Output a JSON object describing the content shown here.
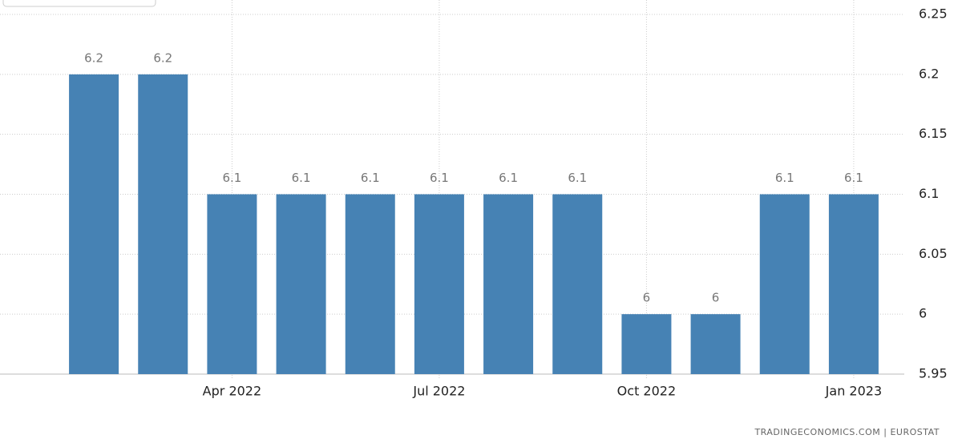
{
  "chart_data": {
    "type": "bar",
    "categories": [
      null,
      null,
      "Apr 2022",
      null,
      null,
      "Jul 2022",
      null,
      null,
      "Oct 2022",
      null,
      null,
      "Jan 2023"
    ],
    "values": [
      6.2,
      6.2,
      6.1,
      6.1,
      6.1,
      6.1,
      6.1,
      6.1,
      6,
      6,
      6.1,
      6.1
    ],
    "color": "#4682b4",
    "ylim": [
      5.95,
      6.25
    ],
    "yticks": [
      5.95,
      6,
      6.05,
      6.1,
      6.15,
      6.2,
      6.25
    ],
    "grid": true,
    "y_axis_side": "right",
    "source": "TRADINGECONOMICS.COM | EUROSTAT"
  }
}
